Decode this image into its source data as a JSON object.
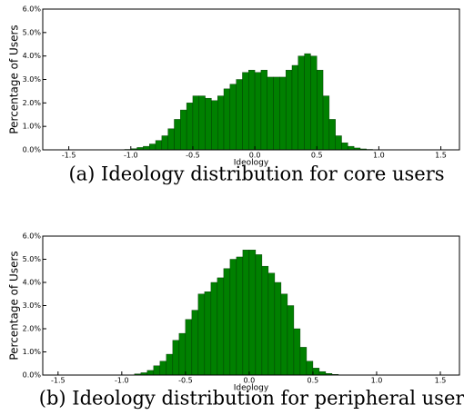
{
  "chart_data": [
    {
      "type": "histogram",
      "caption": "(a) Ideology distribution for core users",
      "xlabel": "Ideology",
      "ylabel": "Percentage of Users",
      "color": "#008000",
      "bins": [
        -1.5,
        -1.45,
        -1.4,
        -1.35,
        -1.3,
        -1.25,
        -1.2,
        -1.15,
        -1.1,
        -1.05,
        -1.0,
        -0.95,
        -0.9,
        -0.85,
        -0.8,
        -0.75,
        -0.7,
        -0.65,
        -0.6,
        -0.55,
        -0.5,
        -0.45,
        -0.4,
        -0.35,
        -0.3,
        -0.25,
        -0.2,
        -0.15,
        -0.1,
        -0.05,
        0.0,
        0.05,
        0.1,
        0.15,
        0.2,
        0.25,
        0.3,
        0.35,
        0.4,
        0.45,
        0.5,
        0.55,
        0.6,
        0.65,
        0.7,
        0.75,
        0.8,
        0.85,
        0.9,
        0.95,
        1.0,
        1.05,
        1.1,
        1.15,
        1.2,
        1.25,
        1.3,
        1.35,
        1.4,
        1.45,
        1.5
      ],
      "values": [
        0,
        0,
        0,
        0,
        0,
        0,
        0,
        0,
        0.01,
        0.02,
        0.05,
        0.1,
        0.15,
        0.25,
        0.4,
        0.6,
        0.9,
        1.3,
        1.7,
        2.0,
        2.3,
        2.3,
        2.2,
        2.1,
        2.3,
        2.6,
        2.8,
        3.0,
        3.3,
        3.4,
        3.3,
        3.4,
        3.1,
        3.1,
        3.1,
        3.4,
        3.6,
        4.0,
        4.1,
        4.0,
        3.4,
        2.3,
        1.3,
        0.6,
        0.3,
        0.15,
        0.08,
        0.04,
        0.02,
        0,
        0,
        0,
        0,
        0,
        0,
        0,
        0,
        0,
        0,
        0
      ],
      "xlim": [
        -1.71,
        1.65
      ],
      "xticks": [
        -1.5,
        {
          "value": -1.0,
          "label": "-1.0"
        },
        -0.5,
        {
          "value": 0.0,
          "label": "0.0"
        },
        0.5,
        {
          "value": 1.0,
          "label": "1.0"
        },
        1.5
      ],
      "ylim": [
        0,
        6
      ],
      "yticks": [
        {
          "value": 0,
          "label": "0.0%"
        },
        {
          "value": 1,
          "label": "1.0%"
        },
        {
          "value": 2,
          "label": "2.0%"
        },
        {
          "value": 3,
          "label": "3.0%"
        },
        {
          "value": 4,
          "label": "4.0%"
        },
        {
          "value": 5,
          "label": "5.0%"
        },
        {
          "value": 6,
          "label": "6.0%"
        }
      ]
    },
    {
      "type": "histogram",
      "caption": "(b) Ideology distribution for peripheral users",
      "xlabel": "Ideology",
      "ylabel": "Percentage of Users",
      "color": "#008000",
      "bins": [
        -1.5,
        -1.45,
        -1.4,
        -1.35,
        -1.3,
        -1.25,
        -1.2,
        -1.15,
        -1.1,
        -1.05,
        -1.0,
        -0.95,
        -0.9,
        -0.85,
        -0.8,
        -0.75,
        -0.7,
        -0.65,
        -0.6,
        -0.55,
        -0.5,
        -0.45,
        -0.4,
        -0.35,
        -0.3,
        -0.25,
        -0.2,
        -0.15,
        -0.1,
        -0.05,
        0.0,
        0.05,
        0.1,
        0.15,
        0.2,
        0.25,
        0.3,
        0.35,
        0.4,
        0.45,
        0.5,
        0.55,
        0.6,
        0.65,
        0.7,
        0.75,
        0.8,
        0.85,
        0.9,
        0.95,
        1.0,
        1.05,
        1.1,
        1.15,
        1.2,
        1.25,
        1.3,
        1.35,
        1.4,
        1.45,
        1.5
      ],
      "values": [
        0,
        0,
        0,
        0,
        0,
        0,
        0,
        0,
        0,
        0,
        0,
        0.01,
        0.05,
        0.1,
        0.2,
        0.4,
        0.6,
        0.9,
        1.5,
        1.8,
        2.4,
        2.8,
        3.5,
        3.6,
        4.0,
        4.2,
        4.6,
        5.0,
        5.1,
        5.4,
        5.4,
        5.2,
        4.7,
        4.4,
        4.0,
        3.5,
        3.0,
        2.0,
        1.2,
        0.6,
        0.3,
        0.15,
        0.07,
        0.03,
        0.01,
        0,
        0,
        0,
        0,
        0,
        0,
        0,
        0,
        0,
        0,
        0,
        0,
        0,
        0,
        0
      ],
      "xlim": [
        -1.62,
        1.65
      ],
      "xticks": [
        -1.5,
        {
          "value": -1.0,
          "label": "-1.0"
        },
        -0.5,
        {
          "value": 0.0,
          "label": "0.0"
        },
        0.5,
        {
          "value": 1.0,
          "label": "1.0"
        },
        1.5
      ],
      "ylim": [
        0,
        6
      ],
      "yticks": [
        {
          "value": 0,
          "label": "0.0%"
        },
        {
          "value": 1,
          "label": "1.0%"
        },
        {
          "value": 2,
          "label": "2.0%"
        },
        {
          "value": 3,
          "label": "3.0%"
        },
        {
          "value": 4,
          "label": "4.0%"
        },
        {
          "value": 5,
          "label": "5.0%"
        },
        {
          "value": 6,
          "label": "6.0%"
        }
      ]
    }
  ]
}
